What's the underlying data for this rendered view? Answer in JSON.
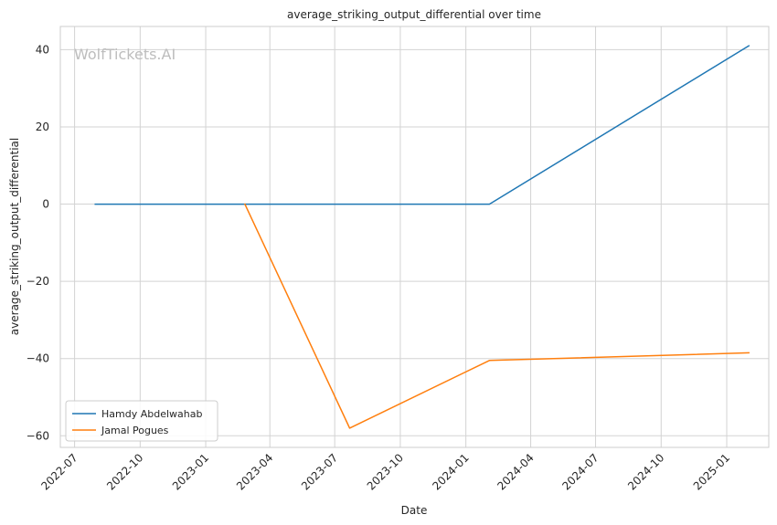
{
  "watermark": "WolfTickets.AI",
  "chart_data": {
    "type": "line",
    "title": "average_striking_output_differential over time",
    "xlabel": "Date",
    "ylabel": "average_striking_output_differential",
    "x_type": "date",
    "xlim": [
      "2022-06-11",
      "2025-03-01"
    ],
    "ylim": [
      -63,
      46
    ],
    "x_ticks": [
      "2022-07-01",
      "2022-10-01",
      "2023-01-01",
      "2023-04-01",
      "2023-07-01",
      "2023-10-01",
      "2024-01-01",
      "2024-04-01",
      "2024-07-01",
      "2024-10-01",
      "2025-01-01"
    ],
    "x_tick_labels": [
      "2022-07",
      "2022-10",
      "2023-01",
      "2023-04",
      "2023-07",
      "2023-10",
      "2024-01",
      "2024-04",
      "2024-07",
      "2024-10",
      "2025-01"
    ],
    "y_ticks": [
      40,
      20,
      0,
      -20,
      -40,
      -60
    ],
    "y_tick_labels": [
      "40",
      "20",
      "0",
      "−20",
      "−40",
      "−60"
    ],
    "grid": true,
    "legend_position": "lower-left",
    "series": [
      {
        "name": "Hamdy Abdelwahab",
        "color": "#1f77b4",
        "points": [
          {
            "x": "2022-07-30",
            "y": 0
          },
          {
            "x": "2024-02-03",
            "y": 0
          },
          {
            "x": "2025-02-01",
            "y": 41
          }
        ]
      },
      {
        "name": "Jamal Pogues",
        "color": "#ff7f0e",
        "points": [
          {
            "x": "2023-02-25",
            "y": 0
          },
          {
            "x": "2023-07-22",
            "y": -58
          },
          {
            "x": "2024-02-03",
            "y": -40.5
          },
          {
            "x": "2025-02-01",
            "y": -38.5
          }
        ]
      }
    ]
  }
}
